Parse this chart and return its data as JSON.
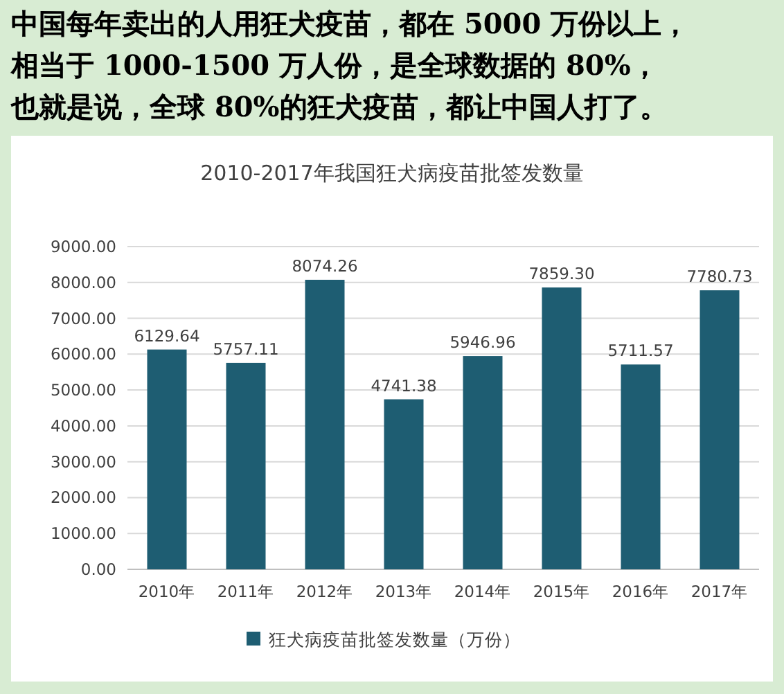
{
  "chart_data": {
    "type": "bar",
    "title": "2010-2017年我国狂犬病疫苗批签发数量",
    "annotations": [
      "中国每年卖出的人用狂犬疫苗，都在 5000 万份以上，",
      "相当于 1000-1500 万人份，是全球数据的 80%，",
      "也就是说，全球 80%的狂犬疫苗，都让中国人打了。"
    ],
    "categories": [
      "2010年",
      "2011年",
      "2012年",
      "2013年",
      "2014年",
      "2015年",
      "2016年",
      "2017年"
    ],
    "series": [
      {
        "name": "狂犬病疫苗批签发数量（万份）",
        "color": "#1e5d72",
        "values": [
          6129.64,
          5757.11,
          8074.26,
          4741.38,
          5946.96,
          7859.3,
          5711.57,
          7780.73
        ],
        "value_labels": [
          "6129.64",
          "5757.11",
          "8074.26",
          "4741.38",
          "5946.96",
          "7859.30",
          "5711.57",
          "7780.73"
        ]
      }
    ],
    "ylim": [
      0,
      9000
    ],
    "yticks": [
      {
        "value": 0,
        "label": "0.00"
      },
      {
        "value": 1000,
        "label": "1000.00"
      },
      {
        "value": 2000,
        "label": "2000.00"
      },
      {
        "value": 3000,
        "label": "3000.00"
      },
      {
        "value": 4000,
        "label": "4000.00"
      },
      {
        "value": 5000,
        "label": "5000.00"
      },
      {
        "value": 6000,
        "label": "6000.00"
      },
      {
        "value": 7000,
        "label": "7000.00"
      },
      {
        "value": 8000,
        "label": "8000.00"
      },
      {
        "value": 9000,
        "label": "9000.00"
      }
    ],
    "grid": "y",
    "legend": "bottom"
  }
}
